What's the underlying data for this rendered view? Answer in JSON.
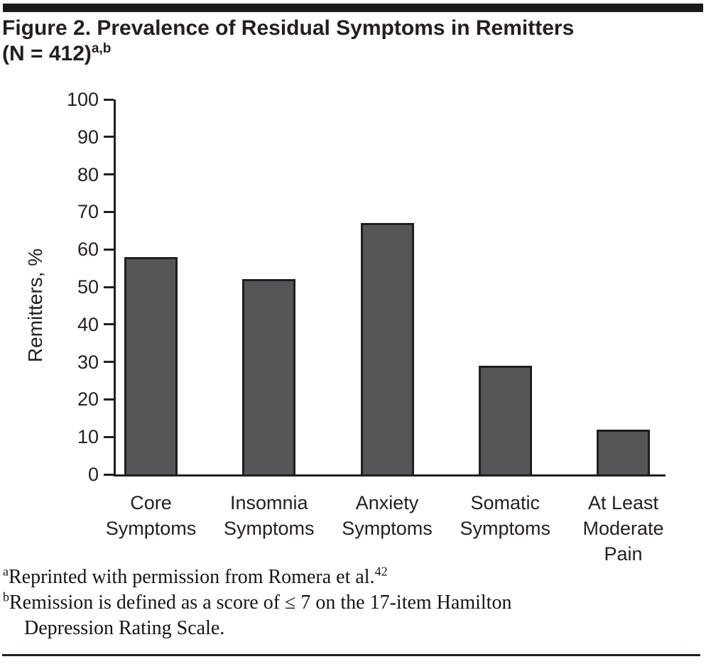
{
  "title": {
    "line1": "Figure 2. Prevalence of Residual Symptoms in Remitters",
    "line2": "(N = 412)",
    "superscript": "a,b"
  },
  "chart_data": {
    "type": "bar",
    "title": "Figure 2. Prevalence of Residual Symptoms in Remitters (N = 412)",
    "categories": [
      "Core Symptoms",
      "Insomnia Symptoms",
      "Anxiety Symptoms",
      "Somatic Symptoms",
      "At Least Moderate Pain"
    ],
    "values": [
      58,
      52,
      67,
      29,
      12
    ],
    "xlabel": "",
    "ylabel": "Remitters, %",
    "ylim": [
      0,
      100
    ],
    "ytick_step": 10,
    "grid": false,
    "legend": false,
    "bar_color": "#565659",
    "bar_border_color": "#1f1f1f"
  },
  "footnotes": [
    {
      "marker": "a",
      "text": "Reprinted with permission from Romera et al.",
      "ref": "42"
    },
    {
      "marker": "b",
      "text_line1": "Remission is defined as a score of ≤ 7 on the 17-item Hamilton",
      "text_line2": "Depression Rating Scale."
    }
  ],
  "colors": {
    "rule": "#1a1a1a",
    "axis": "#231f20",
    "text": "#231f20",
    "bar_fill": "#565659",
    "bar_border": "#1f1f1f",
    "background": "#ffffff"
  }
}
